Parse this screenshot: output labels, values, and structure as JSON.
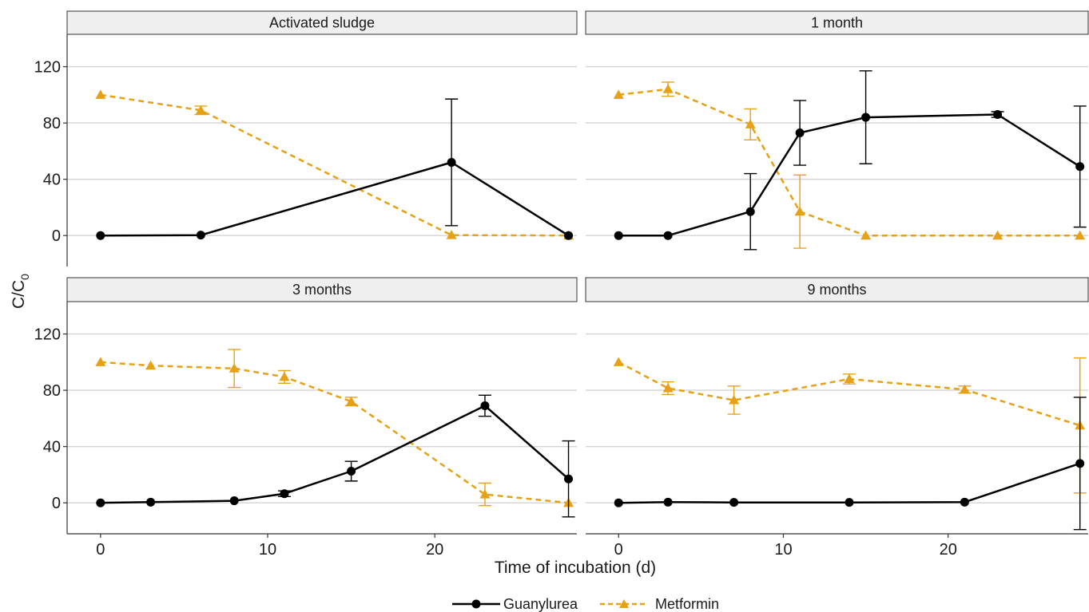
{
  "chart_data": {
    "type": "line",
    "ylabel": "C/C",
    "ylabel_subscript": "0",
    "xlabel": "Time of incubation (d)",
    "x_ticks": [
      0,
      10,
      20
    ],
    "y_ticks": [
      0,
      40,
      80,
      120
    ],
    "xlim": [
      -2,
      28.5
    ],
    "ylim": [
      -22,
      143
    ],
    "grid": "major horizontal lines",
    "legend": {
      "placement": "bottom",
      "entries": [
        {
          "name": "Guanylurea",
          "color": "#000000",
          "marker": "circle",
          "linestyle": "solid"
        },
        {
          "name": "Metformin",
          "color": "#e6a117",
          "marker": "triangle",
          "linestyle": "dashed"
        }
      ]
    },
    "panels": [
      {
        "title": "Activated sludge",
        "series": [
          {
            "name": "Guanylurea",
            "x": [
              0,
              6,
              21,
              28
            ],
            "y": [
              0,
              0.3,
              52,
              0
            ],
            "err": [
              0,
              0,
              45,
              0
            ]
          },
          {
            "name": "Metformin",
            "x": [
              0,
              6,
              21,
              28
            ],
            "y": [
              100,
              89,
              0.3,
              0
            ],
            "err": [
              0,
              3,
              0,
              0
            ]
          }
        ]
      },
      {
        "title": "1 month",
        "series": [
          {
            "name": "Guanylurea",
            "x": [
              0,
              3,
              8,
              11,
              15,
              23,
              28
            ],
            "y": [
              0,
              0,
              17,
              73,
              84,
              86,
              49
            ],
            "err": [
              0,
              0,
              27,
              23,
              33,
              2,
              43
            ]
          },
          {
            "name": "Metformin",
            "x": [
              0,
              3,
              8,
              11,
              15,
              23,
              28
            ],
            "y": [
              100,
              104,
              79,
              17,
              0,
              0,
              0
            ],
            "err": [
              0,
              5,
              11,
              26,
              0,
              0,
              0
            ]
          }
        ]
      },
      {
        "title": "3 months",
        "series": [
          {
            "name": "Guanylurea",
            "x": [
              0,
              3,
              8,
              11,
              15,
              23,
              28
            ],
            "y": [
              0,
              0.5,
              1.5,
              6.5,
              22.5,
              69,
              17
            ],
            "err": [
              0,
              0,
              0,
              2,
              7,
              7.5,
              27
            ]
          },
          {
            "name": "Metformin",
            "x": [
              0,
              3,
              8,
              11,
              15,
              23,
              28
            ],
            "y": [
              100,
              97.5,
              95.5,
              89.5,
              72,
              6,
              0
            ],
            "err": [
              0,
              0,
              13.5,
              4.5,
              3,
              8,
              0
            ]
          }
        ]
      },
      {
        "title": "9 months",
        "series": [
          {
            "name": "Guanylurea",
            "x": [
              0,
              3,
              7,
              14,
              21,
              28
            ],
            "y": [
              0,
              0.5,
              0.3,
              0.3,
              0.5,
              28
            ],
            "err": [
              0,
              0,
              0,
              0,
              0,
              47
            ]
          },
          {
            "name": "Metformin",
            "x": [
              0,
              3,
              7,
              14,
              21,
              28
            ],
            "y": [
              100,
              81.5,
              73,
              88,
              80.5,
              55
            ],
            "err": [
              0,
              4.5,
              10,
              3.5,
              2.5,
              48
            ]
          }
        ]
      }
    ]
  }
}
